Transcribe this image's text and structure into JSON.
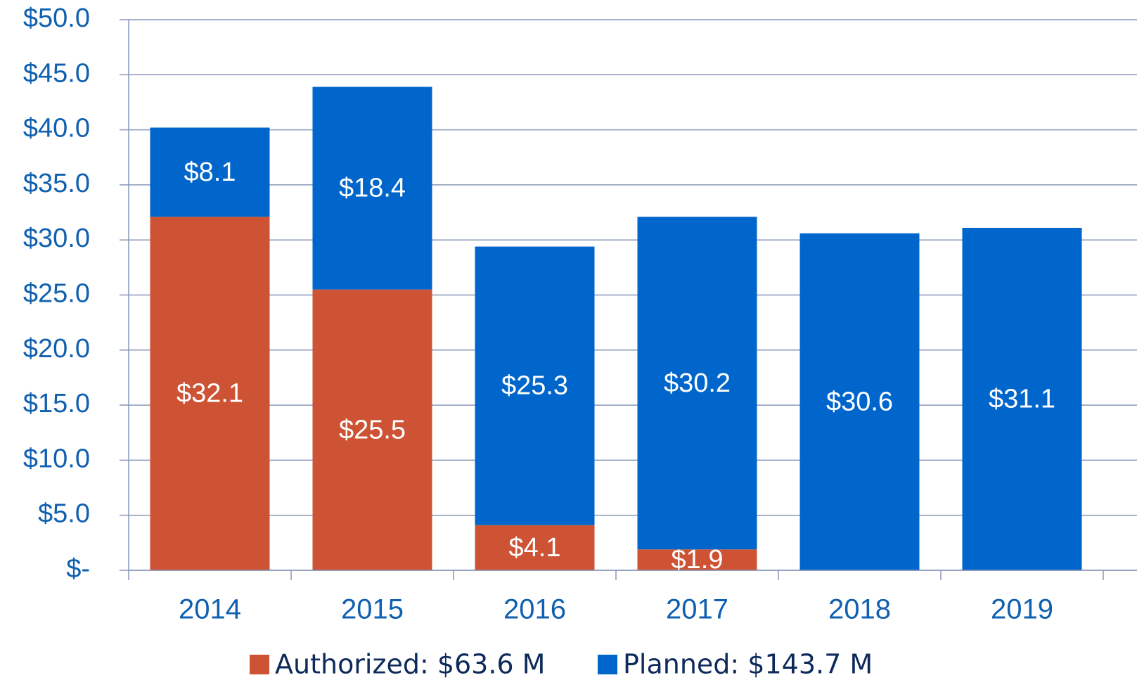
{
  "chart_data": {
    "type": "stacked_bar",
    "categories": [
      "2014",
      "2015",
      "2016",
      "2017",
      "2018",
      "2019"
    ],
    "series": [
      {
        "name": "Authorized: $63.6 M",
        "color": "#cd5334",
        "values": [
          32.1,
          25.5,
          4.1,
          1.9,
          null,
          null
        ],
        "value_labels": [
          "$32.1",
          "$25.5",
          "$4.1",
          "$1.9",
          null,
          null
        ]
      },
      {
        "name": "Planned: $143.7 M",
        "color": "#0066cc",
        "values": [
          8.1,
          18.4,
          25.3,
          30.2,
          30.6,
          31.1
        ],
        "value_labels": [
          "$8.1",
          "$18.4",
          "$25.3",
          "$30.2",
          "$30.6",
          "$31.1"
        ]
      }
    ],
    "ylim": [
      0,
      50
    ],
    "yticks": [
      {
        "value": 0,
        "label": "$-"
      },
      {
        "value": 5,
        "label": "$5.0"
      },
      {
        "value": 10,
        "label": "$10.0"
      },
      {
        "value": 15,
        "label": "$15.0"
      },
      {
        "value": 20,
        "label": "$20.0"
      },
      {
        "value": 25,
        "label": "$25.0"
      },
      {
        "value": 30,
        "label": "$30.0"
      },
      {
        "value": 35,
        "label": "$35.0"
      },
      {
        "value": 40,
        "label": "$40.0"
      },
      {
        "value": 45,
        "label": "$45.0"
      },
      {
        "value": 50,
        "label": "$50.0"
      }
    ],
    "grid": true,
    "legend": "bottom"
  }
}
